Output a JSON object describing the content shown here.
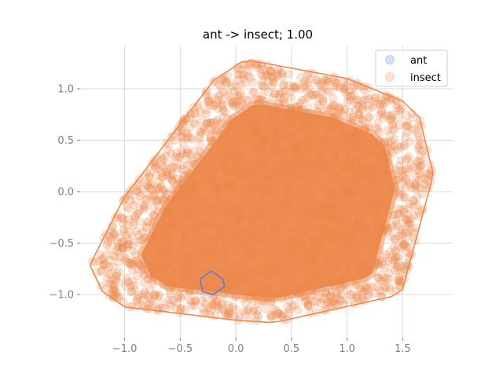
{
  "chart_data": {
    "type": "scatter",
    "title": "ant -> insect; 1.00",
    "xlabel": "",
    "ylabel": "",
    "xlim": [
      -1.4,
      1.95
    ],
    "ylim": [
      -1.42,
      1.42
    ],
    "xticks": [
      -1.0,
      -0.5,
      0.0,
      0.5,
      1.0,
      1.5
    ],
    "xtick_labels": [
      "−1.0",
      "−0.5",
      "0.0",
      "0.5",
      "1.0",
      "1.5"
    ],
    "yticks": [
      1.0,
      0.5,
      0.0,
      -0.5,
      -1.0
    ],
    "ytick_labels": [
      "1.0",
      "0.5",
      "0.0",
      "−0.5",
      "−1.0"
    ],
    "grid": true,
    "legend_position": "top-right",
    "series": [
      {
        "name": "ant",
        "color": "#5b7fd1",
        "hull": [
          [
            -0.22,
            -0.77
          ],
          [
            -0.12,
            -0.85
          ],
          [
            -0.1,
            -0.92
          ],
          [
            -0.2,
            -1.0
          ],
          [
            -0.3,
            -0.97
          ],
          [
            -0.32,
            -0.85
          ]
        ]
      },
      {
        "name": "insect",
        "color": "#ee8a4d",
        "hull": [
          [
            0.05,
            1.26
          ],
          [
            0.15,
            1.27
          ],
          [
            1.0,
            1.1
          ],
          [
            1.5,
            0.88
          ],
          [
            1.65,
            0.72
          ],
          [
            1.77,
            0.2
          ],
          [
            1.76,
            0.1
          ],
          [
            1.5,
            -0.95
          ],
          [
            1.4,
            -1.02
          ],
          [
            0.4,
            -1.26
          ],
          [
            0.3,
            -1.27
          ],
          [
            0.0,
            -1.25
          ],
          [
            -1.0,
            -1.12
          ],
          [
            -1.2,
            -0.97
          ],
          [
            -1.31,
            -0.72
          ],
          [
            -1.27,
            -0.62
          ],
          [
            -1.0,
            -0.05
          ],
          [
            -0.2,
            1.08
          ]
        ]
      }
    ]
  }
}
